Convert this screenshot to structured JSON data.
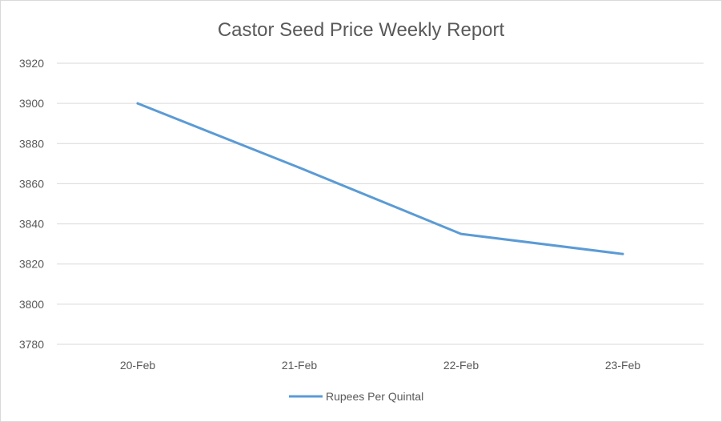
{
  "chart_data": {
    "type": "line",
    "title": "Castor Seed Price Weekly Report",
    "xlabel": "",
    "ylabel": "",
    "categories": [
      "20-Feb",
      "21-Feb",
      "22-Feb",
      "23-Feb"
    ],
    "series": [
      {
        "name": "Rupees Per Quintal",
        "values": [
          3900,
          3868,
          3835,
          3825
        ],
        "color": "#5b9bd5"
      }
    ],
    "ylim": [
      3780,
      3920
    ],
    "yticks": [
      3780,
      3800,
      3820,
      3840,
      3860,
      3880,
      3900,
      3920
    ],
    "grid": true,
    "legend_position": "bottom"
  }
}
